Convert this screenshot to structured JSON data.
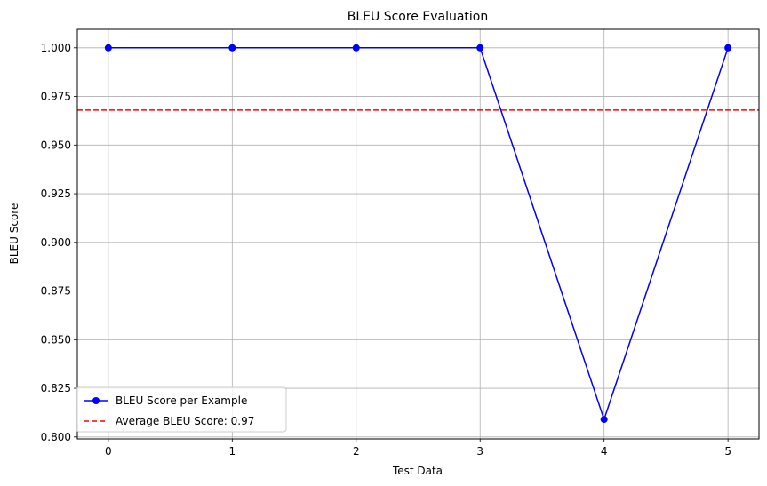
{
  "chart_data": {
    "type": "line",
    "title": "BLEU Score Evaluation",
    "xlabel": "Test Data",
    "ylabel": "BLEU Score",
    "x": [
      0,
      1,
      2,
      3,
      4,
      5
    ],
    "xlim": [
      -0.25,
      5.25
    ],
    "ylim": [
      0.799,
      1.0095
    ],
    "xticks": [
      0,
      1,
      2,
      3,
      4,
      5
    ],
    "xtick_labels": [
      "0",
      "1",
      "2",
      "3",
      "4",
      "5"
    ],
    "yticks": [
      0.8,
      0.825,
      0.85,
      0.875,
      0.9,
      0.925,
      0.95,
      0.975,
      1.0
    ],
    "ytick_labels": [
      "0.800",
      "0.825",
      "0.850",
      "0.875",
      "0.900",
      "0.925",
      "0.950",
      "0.975",
      "1.000"
    ],
    "grid": true,
    "legend_position": "lower-left",
    "series": [
      {
        "name": "BLEU Score per Example",
        "values": [
          1.0,
          1.0,
          1.0,
          1.0,
          0.809,
          1.0
        ],
        "color": "#0000ff",
        "style": "solid",
        "marker": "circle"
      }
    ],
    "hlines": [
      {
        "name": "Average BLEU Score: 0.97",
        "value": 0.968,
        "color": "#ff0000",
        "style": "dashed"
      }
    ]
  }
}
